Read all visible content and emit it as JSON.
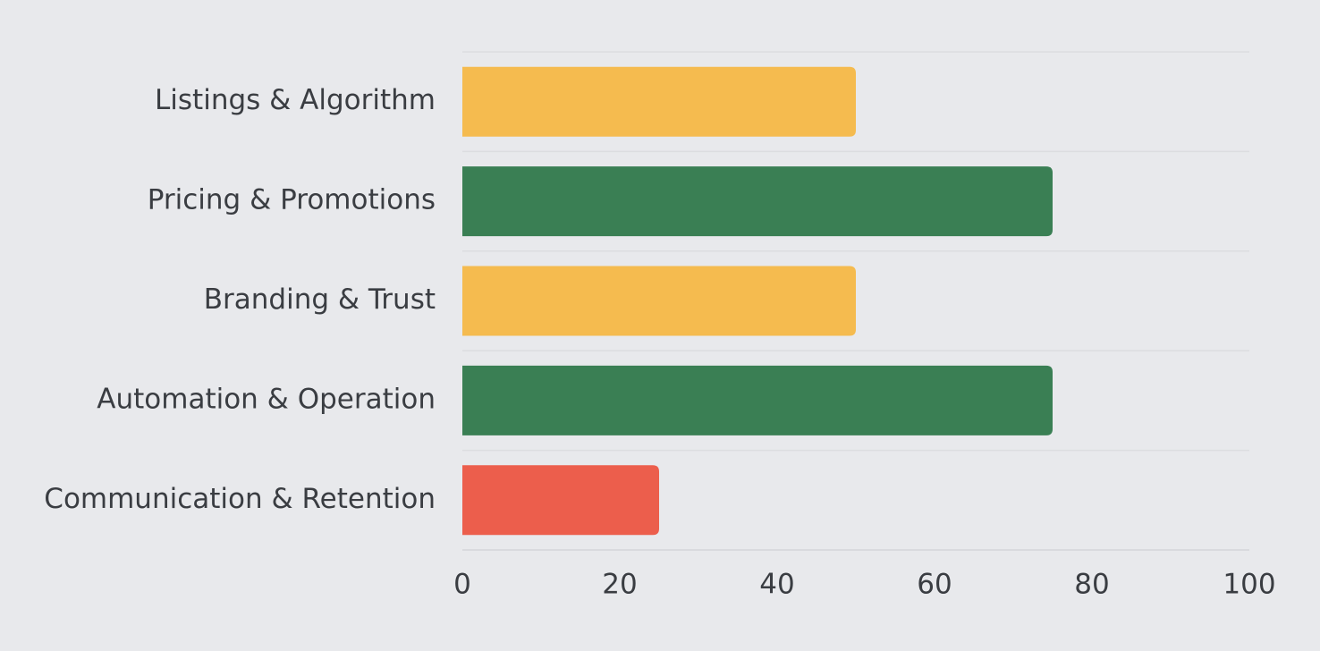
{
  "chart_data": {
    "type": "bar",
    "orientation": "horizontal",
    "categories": [
      "Listings & Algorithm",
      "Pricing & Promotions",
      "Branding & Trust",
      "Automation & Operation",
      "Communication & Retention"
    ],
    "values": [
      50,
      75,
      50,
      75,
      25
    ],
    "bar_colors": [
      "#f5bb4f",
      "#3a7f54",
      "#f5bb4f",
      "#3a7f54",
      "#ec5e4c"
    ],
    "xlim": [
      0,
      100
    ],
    "xticks": [
      0,
      20,
      40,
      60,
      80,
      100
    ],
    "xtick_labels": [
      "0",
      "20",
      "40",
      "60",
      "80",
      "100"
    ],
    "title": "",
    "xlabel": "",
    "ylabel": "",
    "grid": true,
    "legend": "none",
    "background": "#e8e9ec"
  }
}
